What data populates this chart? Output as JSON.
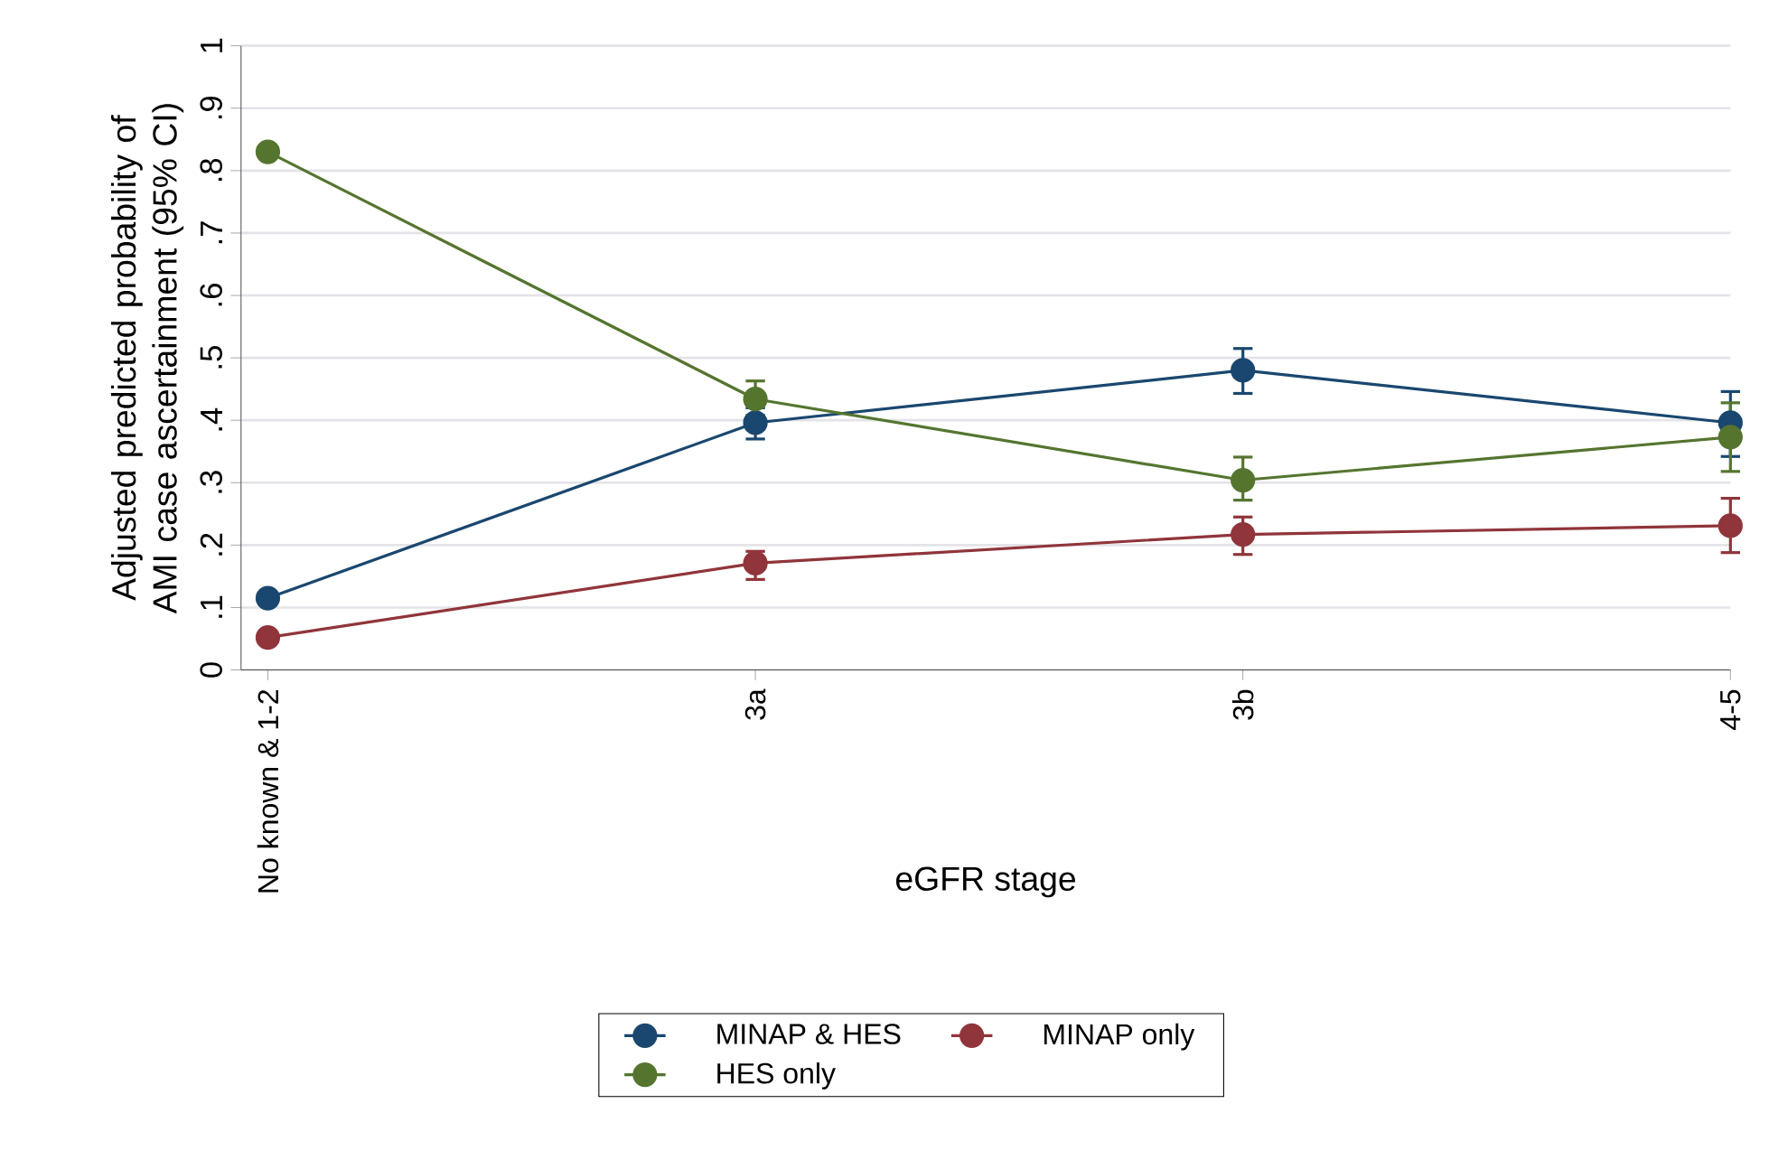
{
  "chart_data": {
    "type": "line",
    "xlabel": "eGFR stage",
    "ylabel": "Adjusted predicted probability of AMI case ascertainment (95% CI)",
    "categories": [
      "No known & 1-2",
      "3a",
      "3b",
      "4-5"
    ],
    "ylim": [
      0,
      1
    ],
    "yticks": [
      0,
      {
        "value": 0.1,
        "label": ".1"
      },
      {
        "value": 0.2,
        "label": ".2"
      },
      {
        "value": 0.3,
        "label": ".3"
      },
      {
        "value": 0.4,
        "label": ".4"
      },
      {
        "value": 0.5,
        "label": ".5"
      },
      {
        "value": 0.6,
        "label": ".6"
      },
      {
        "value": 0.7,
        "label": ".7"
      },
      {
        "value": 0.8,
        "label": ".8"
      },
      {
        "value": 0.9,
        "label": ".9"
      },
      1
    ],
    "grid": "y",
    "legend": "bottom",
    "marker": "circle",
    "line_style": "solid",
    "series": [
      {
        "name": "MINAP & HES",
        "color": "#1a476f",
        "values": [
          0.115,
          0.396,
          0.48,
          0.396
        ],
        "errors": [
          null,
          [
            0.37,
            0.42
          ],
          [
            0.443,
            0.515
          ],
          [
            0.342,
            0.446
          ]
        ]
      },
      {
        "name": "MINAP only",
        "color": "#90353b",
        "values": [
          0.052,
          0.171,
          0.217,
          0.231
        ],
        "errors": [
          null,
          [
            0.145,
            0.19
          ],
          [
            0.185,
            0.245
          ],
          [
            0.188,
            0.275
          ]
        ]
      },
      {
        "name": "HES only",
        "color": "#55752f",
        "values": [
          0.83,
          0.434,
          0.304,
          0.373
        ],
        "errors": [
          null,
          [
            0.408,
            0.463
          ],
          [
            0.272,
            0.341
          ],
          [
            0.318,
            0.428
          ]
        ]
      }
    ]
  }
}
